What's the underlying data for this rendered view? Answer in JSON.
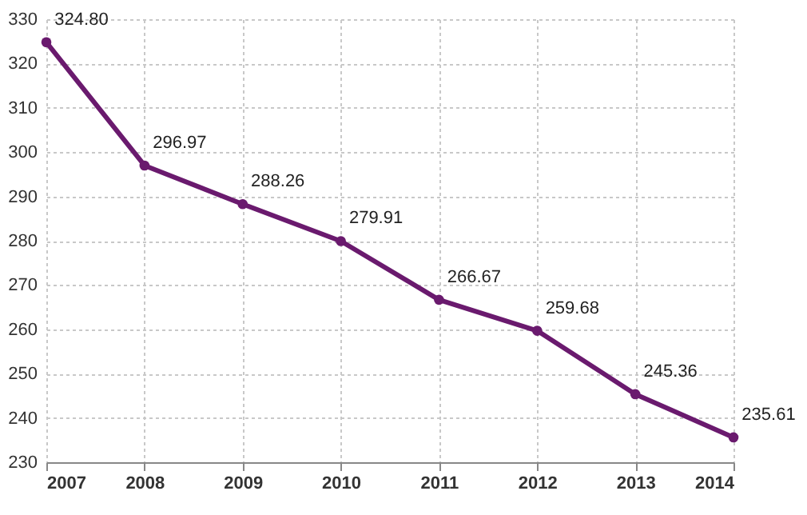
{
  "chart_data": {
    "type": "line",
    "x": [
      2007,
      2008,
      2009,
      2010,
      2011,
      2012,
      2013,
      2014
    ],
    "series": [
      {
        "color": "#6a1a6e",
        "values": [
          324.8,
          296.97,
          288.26,
          279.91,
          266.67,
          259.68,
          245.36,
          235.61
        ],
        "value_labels": [
          "324.80",
          "296.97",
          "288.26",
          "279.91",
          "266.67",
          "259.68",
          "245.36",
          "235.61"
        ]
      }
    ],
    "xlim": [
      2007,
      2014
    ],
    "xticks": [
      2007,
      2008,
      2009,
      2010,
      2011,
      2012,
      2013,
      2014
    ],
    "ylim": [
      230,
      330
    ],
    "yticks": [
      230,
      240,
      250,
      260,
      270,
      280,
      290,
      300,
      310,
      320,
      330
    ],
    "grid": true,
    "marker": "circle",
    "data_labels": true
  }
}
